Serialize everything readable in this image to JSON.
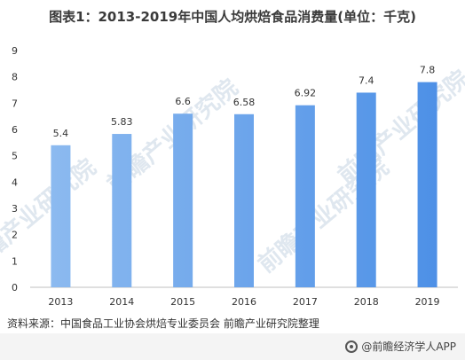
{
  "title": "图表1：2013-2019年中国人均烘焙食品消费量(单位：千克)",
  "source": "资料来源：中国食品工业协会烘焙专业委员会 前瞻产业研究院整理",
  "footer_brand": "@前瞻经济学人APP",
  "watermark": "前瞻产业研究院",
  "colors": {
    "bar_start": "#8fbcf0",
    "bar_end": "#4a8ee6",
    "axis": "#bfbfbf"
  },
  "chart_data": {
    "type": "bar",
    "categories": [
      "2013",
      "2014",
      "2015",
      "2016",
      "2017",
      "2018",
      "2019"
    ],
    "values": [
      5.4,
      5.83,
      6.6,
      6.58,
      6.92,
      7.4,
      7.8
    ],
    "value_labels": [
      "5.4",
      "5.83",
      "6.6",
      "6.58",
      "6.92",
      "7.4",
      "7.8"
    ],
    "ylim": [
      0,
      9
    ],
    "yticks": [
      0,
      1,
      2,
      3,
      4,
      5,
      6,
      7,
      8,
      9
    ],
    "grid": false
  }
}
